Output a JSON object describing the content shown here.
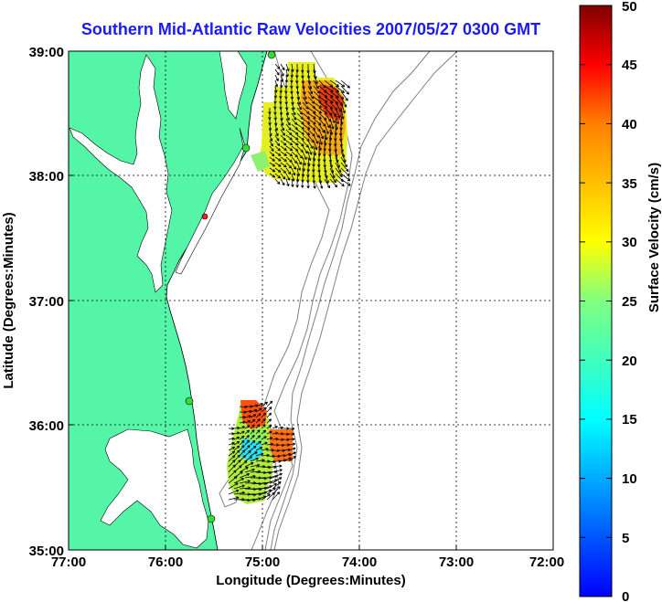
{
  "title": "Southern Mid-Atlantic Raw Velocities 2007/05/27 0300 GMT",
  "map": {
    "xlabel": "Longitude (Degrees:Minutes)",
    "ylabel": "Latitude (Degrees:Minutes)",
    "x_ticks": [
      "77:00",
      "76:00",
      "75:00",
      "74:00",
      "73:00",
      "72:00"
    ],
    "y_ticks": [
      "39:00",
      "38:00",
      "37:00",
      "36:00",
      "35:00"
    ],
    "lon_range": [
      -77,
      -72
    ],
    "lat_range": [
      35,
      39
    ],
    "land_color": "#55f5a8",
    "water_color": "#ffffff",
    "station_color": "#33dd33",
    "highlight_station_color": "#ee2222"
  },
  "colorbar": {
    "label": "Surface Velocity (cm/s)",
    "ticks": [
      "50",
      "45",
      "40",
      "35",
      "30",
      "25",
      "20",
      "15",
      "10",
      "5",
      "0"
    ],
    "range": [
      0,
      50
    ],
    "colormap": "jet"
  }
}
